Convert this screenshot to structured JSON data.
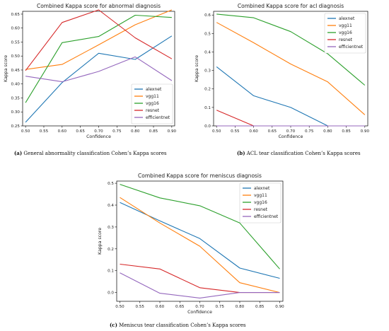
{
  "captions": [
    {
      "tag": "(a)",
      "text": "General abnormality classification Cohen’s Kappa scores"
    },
    {
      "tag": "(b)",
      "text": "ACL tear classification Cohen’s Kappa scores"
    },
    {
      "tag": "(c)",
      "text": "Meniscus tear classification Cohen’s Kappa scores"
    }
  ],
  "chart_data": [
    {
      "type": "line",
      "title": "Combined Kappa score for abnormal diagnosis",
      "xlabel": "Confidence",
      "ylabel": "Kappa score",
      "xlim": [
        0.5,
        0.9
      ],
      "ylim": [
        0.25,
        0.66
      ],
      "x_ticks": [
        "0.50",
        "0.55",
        "0.60",
        "0.65",
        "0.70",
        "0.75",
        "0.80",
        "0.85",
        "0.90"
      ],
      "y_ticks": [
        "0.25",
        "0.30",
        "0.35",
        "0.40",
        "0.45",
        "0.50",
        "0.55",
        "0.60",
        "0.65"
      ],
      "grid": false,
      "legend": "bottom-right",
      "x": [
        0.5,
        0.6,
        0.7,
        0.8,
        0.9
      ],
      "series": [
        {
          "name": "alexnet",
          "color": "#1f77b4",
          "values": [
            0.263,
            0.405,
            0.51,
            0.488,
            0.572
          ]
        },
        {
          "name": "vgg11",
          "color": "#ff7f0e",
          "values": [
            0.452,
            0.47,
            0.54,
            0.612,
            0.665
          ]
        },
        {
          "name": "vgg16",
          "color": "#2ca02c",
          "values": [
            0.333,
            0.548,
            0.57,
            0.646,
            0.638
          ]
        },
        {
          "name": "resnet",
          "color": "#d62728",
          "values": [
            0.448,
            0.62,
            0.665,
            0.565,
            0.49
          ]
        },
        {
          "name": "efficientnet",
          "color": "#9467bd",
          "values": [
            0.428,
            0.408,
            0.445,
            0.497,
            0.412
          ]
        }
      ]
    },
    {
      "type": "line",
      "title": "Combined Kappa score for acl diagnosis",
      "xlabel": "Confidence",
      "ylabel": "Kappa score",
      "xlim": [
        0.5,
        0.9
      ],
      "ylim": [
        0.0,
        0.62
      ],
      "x_ticks": [
        "0.50",
        "0.55",
        "0.60",
        "0.65",
        "0.70",
        "0.75",
        "0.80",
        "0.85",
        "0.90"
      ],
      "y_ticks": [
        "0.0",
        "0.1",
        "0.2",
        "0.3",
        "0.4",
        "0.5",
        "0.6"
      ],
      "grid": false,
      "legend": "top-right",
      "x": [
        0.5,
        0.6,
        0.7,
        0.8,
        0.9
      ],
      "series": [
        {
          "name": "alexnet",
          "color": "#1f77b4",
          "values": [
            0.32,
            0.163,
            0.1,
            0.0,
            0.0
          ]
        },
        {
          "name": "vgg11",
          "color": "#ff7f0e",
          "values": [
            0.56,
            0.45,
            0.335,
            0.238,
            0.06
          ]
        },
        {
          "name": "vgg16",
          "color": "#2ca02c",
          "values": [
            0.605,
            0.585,
            0.51,
            0.39,
            0.22
          ]
        },
        {
          "name": "resnet",
          "color": "#d62728",
          "values": [
            0.085,
            0.0,
            null,
            null,
            null
          ]
        },
        {
          "name": "efficientnet",
          "color": "#9467bd",
          "values": [
            0.0,
            0.0,
            0.0,
            0.0,
            0.0
          ]
        }
      ]
    },
    {
      "type": "line",
      "title": "Combined Kappa score for meniscus diagnosis",
      "xlabel": "Confidence",
      "ylabel": "Kappa score",
      "xlim": [
        0.5,
        0.9
      ],
      "ylim": [
        -0.04,
        0.51
      ],
      "x_ticks": [
        "0.50",
        "0.55",
        "0.60",
        "0.65",
        "0.70",
        "0.75",
        "0.80",
        "0.85",
        "0.90"
      ],
      "y_ticks": [
        "0.0",
        "0.1",
        "0.2",
        "0.3",
        "0.4",
        "0.5"
      ],
      "grid": false,
      "legend": "top-right",
      "x": [
        0.5,
        0.6,
        0.7,
        0.8,
        0.9
      ],
      "series": [
        {
          "name": "alexnet",
          "color": "#1f77b4",
          "values": [
            0.412,
            0.328,
            0.247,
            0.112,
            0.065
          ]
        },
        {
          "name": "vgg11",
          "color": "#ff7f0e",
          "values": [
            0.435,
            0.318,
            0.212,
            0.045,
            0.0
          ]
        },
        {
          "name": "vgg16",
          "color": "#2ca02c",
          "values": [
            0.495,
            0.433,
            0.397,
            0.318,
            0.108
          ]
        },
        {
          "name": "resnet",
          "color": "#d62728",
          "values": [
            0.13,
            0.108,
            0.022,
            0.0,
            0.0
          ]
        },
        {
          "name": "efficientnet",
          "color": "#9467bd",
          "values": [
            0.09,
            -0.003,
            -0.025,
            0.0,
            0.0
          ]
        }
      ]
    }
  ]
}
